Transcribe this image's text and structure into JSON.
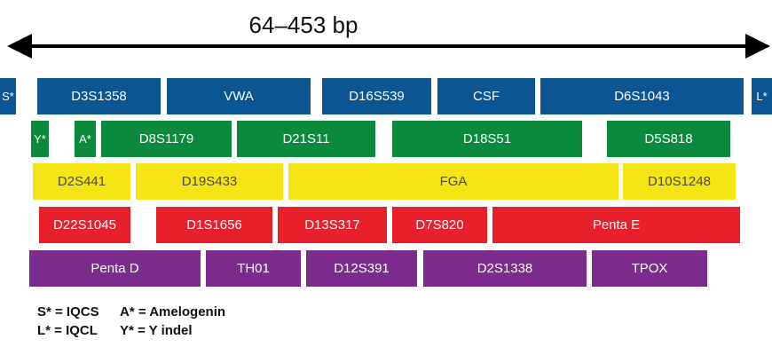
{
  "range_label": "64–453 bp",
  "rows": [
    {
      "color": "#0b5593",
      "text_color": "#ffffff",
      "loci": [
        "S*",
        "D3S1358",
        "VWA",
        "D16S539",
        "CSF",
        "D6S1043",
        "L*"
      ]
    },
    {
      "color": "#0b8a3c",
      "text_color": "#ffffff",
      "loci": [
        "Y*",
        "A*",
        "D8S1179",
        "D21S11",
        "D18S51",
        "D5S818"
      ]
    },
    {
      "color": "#f6e514",
      "text_color": "#4a4a3a",
      "loci": [
        "D2S441",
        "D19S433",
        "FGA",
        "D10S1248"
      ]
    },
    {
      "color": "#e8202b",
      "text_color": "#ffffff",
      "loci": [
        "D22S1045",
        "D1S1656",
        "D13S317",
        "D7S820",
        "Penta E"
      ]
    },
    {
      "color": "#7b2b8b",
      "text_color": "#ffffff",
      "loci": [
        "Penta D",
        "TH01",
        "D12S391",
        "D2S1338",
        "TPOX"
      ]
    }
  ],
  "legend": [
    [
      "S* = IQCS",
      "A* = Amelogenin"
    ],
    [
      "L* = IQCL",
      "Y* = Y indel"
    ]
  ]
}
